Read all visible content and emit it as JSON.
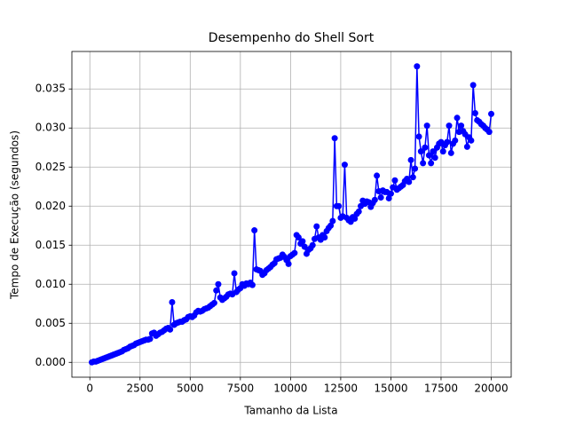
{
  "chart_data": {
    "type": "line",
    "title": "Desempenho do Shell Sort",
    "x_label": "Tamanho da Lista",
    "y_label": "Tempo de Execução (segundos)",
    "color": "#0000ff",
    "grid": true,
    "x": [
      100,
      200,
      300,
      400,
      500,
      600,
      700,
      800,
      900,
      1000,
      1100,
      1200,
      1300,
      1400,
      1500,
      1600,
      1700,
      1800,
      1900,
      2000,
      2100,
      2200,
      2300,
      2400,
      2500,
      2600,
      2700,
      2800,
      2900,
      3000,
      3100,
      3200,
      3300,
      3400,
      3500,
      3600,
      3700,
      3800,
      3900,
      4000,
      4100,
      4200,
      4300,
      4400,
      4500,
      4600,
      4700,
      4800,
      4900,
      5000,
      5100,
      5200,
      5300,
      5400,
      5500,
      5600,
      5700,
      5800,
      5900,
      6000,
      6100,
      6200,
      6300,
      6400,
      6500,
      6600,
      6700,
      6800,
      6900,
      7000,
      7100,
      7200,
      7300,
      7400,
      7500,
      7600,
      7700,
      7800,
      7900,
      8000,
      8100,
      8200,
      8300,
      8400,
      8500,
      8600,
      8700,
      8800,
      8900,
      9000,
      9100,
      9200,
      9300,
      9400,
      9500,
      9600,
      9700,
      9800,
      9900,
      10000,
      10100,
      10200,
      10300,
      10400,
      10500,
      10600,
      10700,
      10800,
      10900,
      11000,
      11100,
      11200,
      11300,
      11400,
      11500,
      11600,
      11700,
      11800,
      11900,
      12000,
      12100,
      12200,
      12300,
      12400,
      12500,
      12600,
      12700,
      12800,
      12900,
      13000,
      13100,
      13200,
      13300,
      13400,
      13500,
      13600,
      13700,
      13800,
      13900,
      14000,
      14100,
      14200,
      14300,
      14400,
      14500,
      14600,
      14700,
      14800,
      14900,
      15000,
      15100,
      15200,
      15300,
      15400,
      15500,
      15600,
      15700,
      15800,
      15900,
      16000,
      16100,
      16200,
      16300,
      16400,
      16500,
      16600,
      16700,
      16800,
      16900,
      17000,
      17100,
      17200,
      17300,
      17400,
      17500,
      17600,
      17700,
      17800,
      17900,
      18000,
      18100,
      18200,
      18300,
      18400,
      18500,
      18600,
      18700,
      18800,
      18900,
      19000,
      19100,
      19200,
      19300,
      19400,
      19500,
      19600,
      19700,
      19800,
      19900,
      20000
    ],
    "values": [
      0.0,
      0.0001,
      0.0001,
      0.0002,
      0.0003,
      0.0004,
      0.0005,
      0.0006,
      0.0007,
      0.0008,
      0.0009,
      0.001,
      0.0011,
      0.0012,
      0.0013,
      0.0014,
      0.0016,
      0.0017,
      0.0018,
      0.002,
      0.0021,
      0.0022,
      0.0024,
      0.0025,
      0.0026,
      0.0027,
      0.0028,
      0.0029,
      0.0029,
      0.003,
      0.0037,
      0.0038,
      0.0034,
      0.0036,
      0.0038,
      0.0039,
      0.0041,
      0.0043,
      0.0044,
      0.0042,
      0.0077,
      0.0048,
      0.005,
      0.0051,
      0.0052,
      0.0052,
      0.0054,
      0.0055,
      0.0058,
      0.0059,
      0.0058,
      0.006,
      0.0064,
      0.0066,
      0.0065,
      0.0066,
      0.0068,
      0.0069,
      0.007,
      0.0072,
      0.0074,
      0.0076,
      0.0092,
      0.01,
      0.0083,
      0.008,
      0.0082,
      0.0084,
      0.0087,
      0.0088,
      0.0087,
      0.0114,
      0.009,
      0.0093,
      0.0095,
      0.01,
      0.0098,
      0.0101,
      0.01,
      0.0102,
      0.0099,
      0.0169,
      0.0119,
      0.0118,
      0.0117,
      0.0112,
      0.0114,
      0.0118,
      0.012,
      0.0122,
      0.0125,
      0.0127,
      0.0132,
      0.0133,
      0.0134,
      0.0138,
      0.0135,
      0.0131,
      0.0126,
      0.0136,
      0.0138,
      0.014,
      0.0163,
      0.016,
      0.0152,
      0.0155,
      0.0148,
      0.0139,
      0.0144,
      0.0146,
      0.015,
      0.0158,
      0.0174,
      0.016,
      0.0157,
      0.0163,
      0.016,
      0.0168,
      0.0172,
      0.0175,
      0.0181,
      0.0287,
      0.02,
      0.02,
      0.0185,
      0.0187,
      0.0253,
      0.0185,
      0.0182,
      0.018,
      0.0186,
      0.0184,
      0.019,
      0.0193,
      0.02,
      0.0207,
      0.0203,
      0.0206,
      0.0205,
      0.0199,
      0.0204,
      0.0208,
      0.0239,
      0.0219,
      0.0211,
      0.022,
      0.0218,
      0.0218,
      0.021,
      0.0216,
      0.0224,
      0.0233,
      0.0221,
      0.0223,
      0.0225,
      0.0227,
      0.0232,
      0.0235,
      0.0231,
      0.0259,
      0.0237,
      0.0248,
      0.0379,
      0.0289,
      0.027,
      0.0255,
      0.0275,
      0.0303,
      0.0265,
      0.0255,
      0.027,
      0.0262,
      0.0275,
      0.028,
      0.0282,
      0.027,
      0.0278,
      0.0282,
      0.0303,
      0.0268,
      0.028,
      0.0284,
      0.0313,
      0.0295,
      0.0303,
      0.0296,
      0.0292,
      0.0276,
      0.0288,
      0.0284,
      0.0355,
      0.0319,
      0.031,
      0.0308,
      0.0305,
      0.0303,
      0.03,
      0.0298,
      0.0295,
      0.0318
    ],
    "xlim": [
      -895,
      20995
    ],
    "ylim": [
      -0.0019,
      0.0398
    ],
    "xticks": [
      0,
      2500,
      5000,
      7500,
      10000,
      12500,
      15000,
      17500,
      20000
    ],
    "yticks": [
      {
        "value": 0,
        "label": "0.000"
      },
      {
        "value": 0.005,
        "label": "0.005"
      },
      {
        "value": 0.01,
        "label": "0.010"
      },
      {
        "value": 0.015,
        "label": "0.015"
      },
      {
        "value": 0.02,
        "label": "0.020"
      },
      {
        "value": 0.025,
        "label": "0.025"
      },
      {
        "value": 0.03,
        "label": "0.030"
      },
      {
        "value": 0.035,
        "label": "0.035"
      }
    ]
  }
}
